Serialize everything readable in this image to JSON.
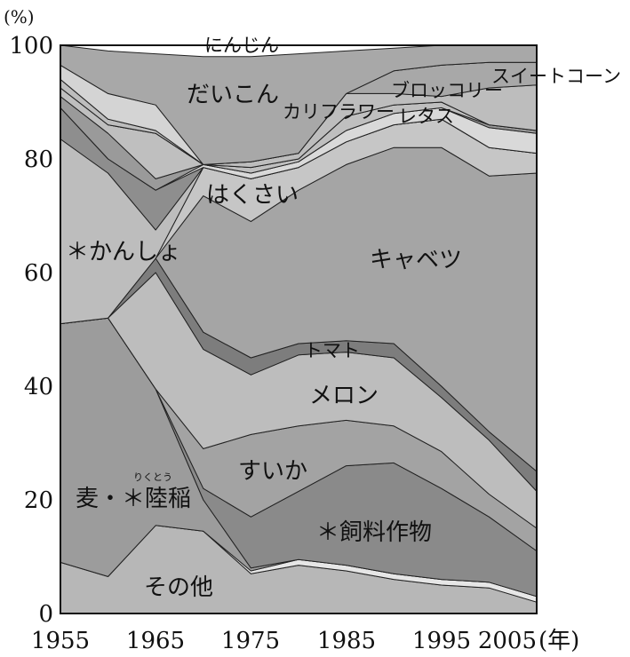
{
  "chart_data": {
    "type": "area",
    "y_unit": "(%)",
    "x_unit": "(年)",
    "ylim": [
      0,
      100
    ],
    "xlim": [
      1955,
      2005
    ],
    "y_ticks": [
      "0",
      "20",
      "40",
      "60",
      "80",
      "100"
    ],
    "x_ticks": [
      "1955",
      "1965",
      "1975",
      "1985",
      "1995",
      "2005"
    ],
    "x_tick_values": [
      1955,
      1965,
      1975,
      1985,
      1995,
      2005
    ],
    "y_tick_values": [
      0,
      20,
      40,
      60,
      80,
      100
    ],
    "x": [
      1955,
      1960,
      1965,
      1970,
      1975,
      1980,
      1985,
      1990,
      1995,
      2000,
      2005
    ],
    "cumulative_top_percent": [
      {
        "name": "その他",
        "values": [
          9,
          6.5,
          15.5,
          14.5,
          7,
          8.5,
          7.5,
          6,
          5,
          4.5,
          2
        ]
      },
      {
        "name": "",
        "values": [
          9,
          6.5,
          15.5,
          14.5,
          7.5,
          9.5,
          8.5,
          7,
          6,
          5.5,
          3
        ]
      },
      {
        "name": "麦・陸稲",
        "values": [
          51,
          52,
          39.5,
          20,
          8,
          9.5,
          8.5,
          7,
          6,
          5.5,
          3
        ]
      },
      {
        "name": "飼料作物",
        "values": [
          51,
          52,
          39.5,
          22,
          17,
          21.5,
          26,
          26.5,
          22,
          17,
          11
        ]
      },
      {
        "name": "すいか",
        "values": [
          51,
          52,
          39.5,
          29,
          31.5,
          33,
          34,
          33,
          28.5,
          21,
          15
        ]
      },
      {
        "name": "メロン",
        "values": [
          51,
          52,
          60,
          46.5,
          42,
          45.5,
          46,
          45,
          38,
          30.5,
          21.5
        ]
      },
      {
        "name": "トマト",
        "values": [
          51,
          52,
          62.5,
          49.5,
          45,
          47.5,
          48,
          47.5,
          40,
          32,
          25
        ]
      },
      {
        "name": "キャベツ",
        "values": [
          51,
          52,
          62.5,
          73.5,
          69,
          74.5,
          79,
          82,
          82,
          77,
          77.5
        ]
      },
      {
        "name": "はくさい",
        "values": [
          51,
          52,
          62.5,
          78.5,
          76.5,
          78.5,
          83,
          86,
          87,
          82,
          81
        ]
      },
      {
        "name": "かんしょ",
        "values": [
          83.5,
          77.5,
          67.5,
          78.5,
          76.5,
          78.5,
          83,
          86,
          87,
          82,
          81
        ]
      },
      {
        "name": "",
        "values": [
          89,
          80,
          74.5,
          78.5,
          76.5,
          78.5,
          83,
          86,
          87,
          82,
          81
        ]
      },
      {
        "name": "レタス",
        "values": [
          89,
          80,
          74.5,
          79,
          77.5,
          79.5,
          85,
          88,
          89,
          85.5,
          84.5
        ]
      },
      {
        "name": "",
        "values": [
          91,
          84.5,
          76.5,
          79,
          77.5,
          79.5,
          85,
          88,
          89,
          86,
          85
        ]
      },
      {
        "name": "",
        "values": [
          92.5,
          86,
          84.5,
          79,
          78.5,
          80,
          87.5,
          89.5,
          90,
          86,
          85
        ]
      },
      {
        "name": "カリフラワー",
        "values": [
          92.5,
          86,
          84.5,
          79,
          78.5,
          80,
          87.5,
          89.5,
          90,
          86,
          85
        ]
      },
      {
        "name": "ブロッコリー",
        "values": [
          94,
          87,
          85,
          79,
          79.5,
          81,
          91.5,
          91.5,
          91,
          92.5,
          93
        ]
      },
      {
        "name": "スイートコーン",
        "values": [
          94,
          87,
          85,
          79,
          79.5,
          81,
          91.5,
          95.5,
          96.5,
          97,
          97
        ]
      },
      {
        "name": "だいこん",
        "values": [
          96.5,
          91.5,
          89.5,
          79,
          79.5,
          81,
          91.5,
          95.5,
          96.5,
          97,
          97
        ]
      },
      {
        "name": "にんじん",
        "values": [
          100,
          99,
          98.5,
          98,
          98,
          98.5,
          99,
          99.5,
          100,
          100,
          100
        ]
      }
    ],
    "band_fills": [
      "#b7b7b7",
      "#e6e6e6",
      "#9c9c9c",
      "#8a8a8a",
      "#a3a3a3",
      "#bdbdbd",
      "#7d7d7d",
      "#a5a5a5",
      "#c6c6c6",
      "#bdbdbd",
      "#8e8e8e",
      "#d9d9d9",
      "#9a9a9a",
      "#bfbfbf",
      "#f0f0f0",
      "#bdbdbd",
      "#a8a8a8",
      "#d4d4d4",
      "#a8a8a8"
    ],
    "area_labels": [
      "にんじん",
      "だいこん",
      "カリフラワー",
      "ブロッコリー",
      "スイートコーン",
      "レタス",
      "はくさい",
      "＊かんしょ",
      "キャベツ",
      "トマト",
      "メロン",
      "すいか",
      "麦・＊陸稲",
      "りくとう",
      "＊飼料作物",
      "その他"
    ]
  }
}
